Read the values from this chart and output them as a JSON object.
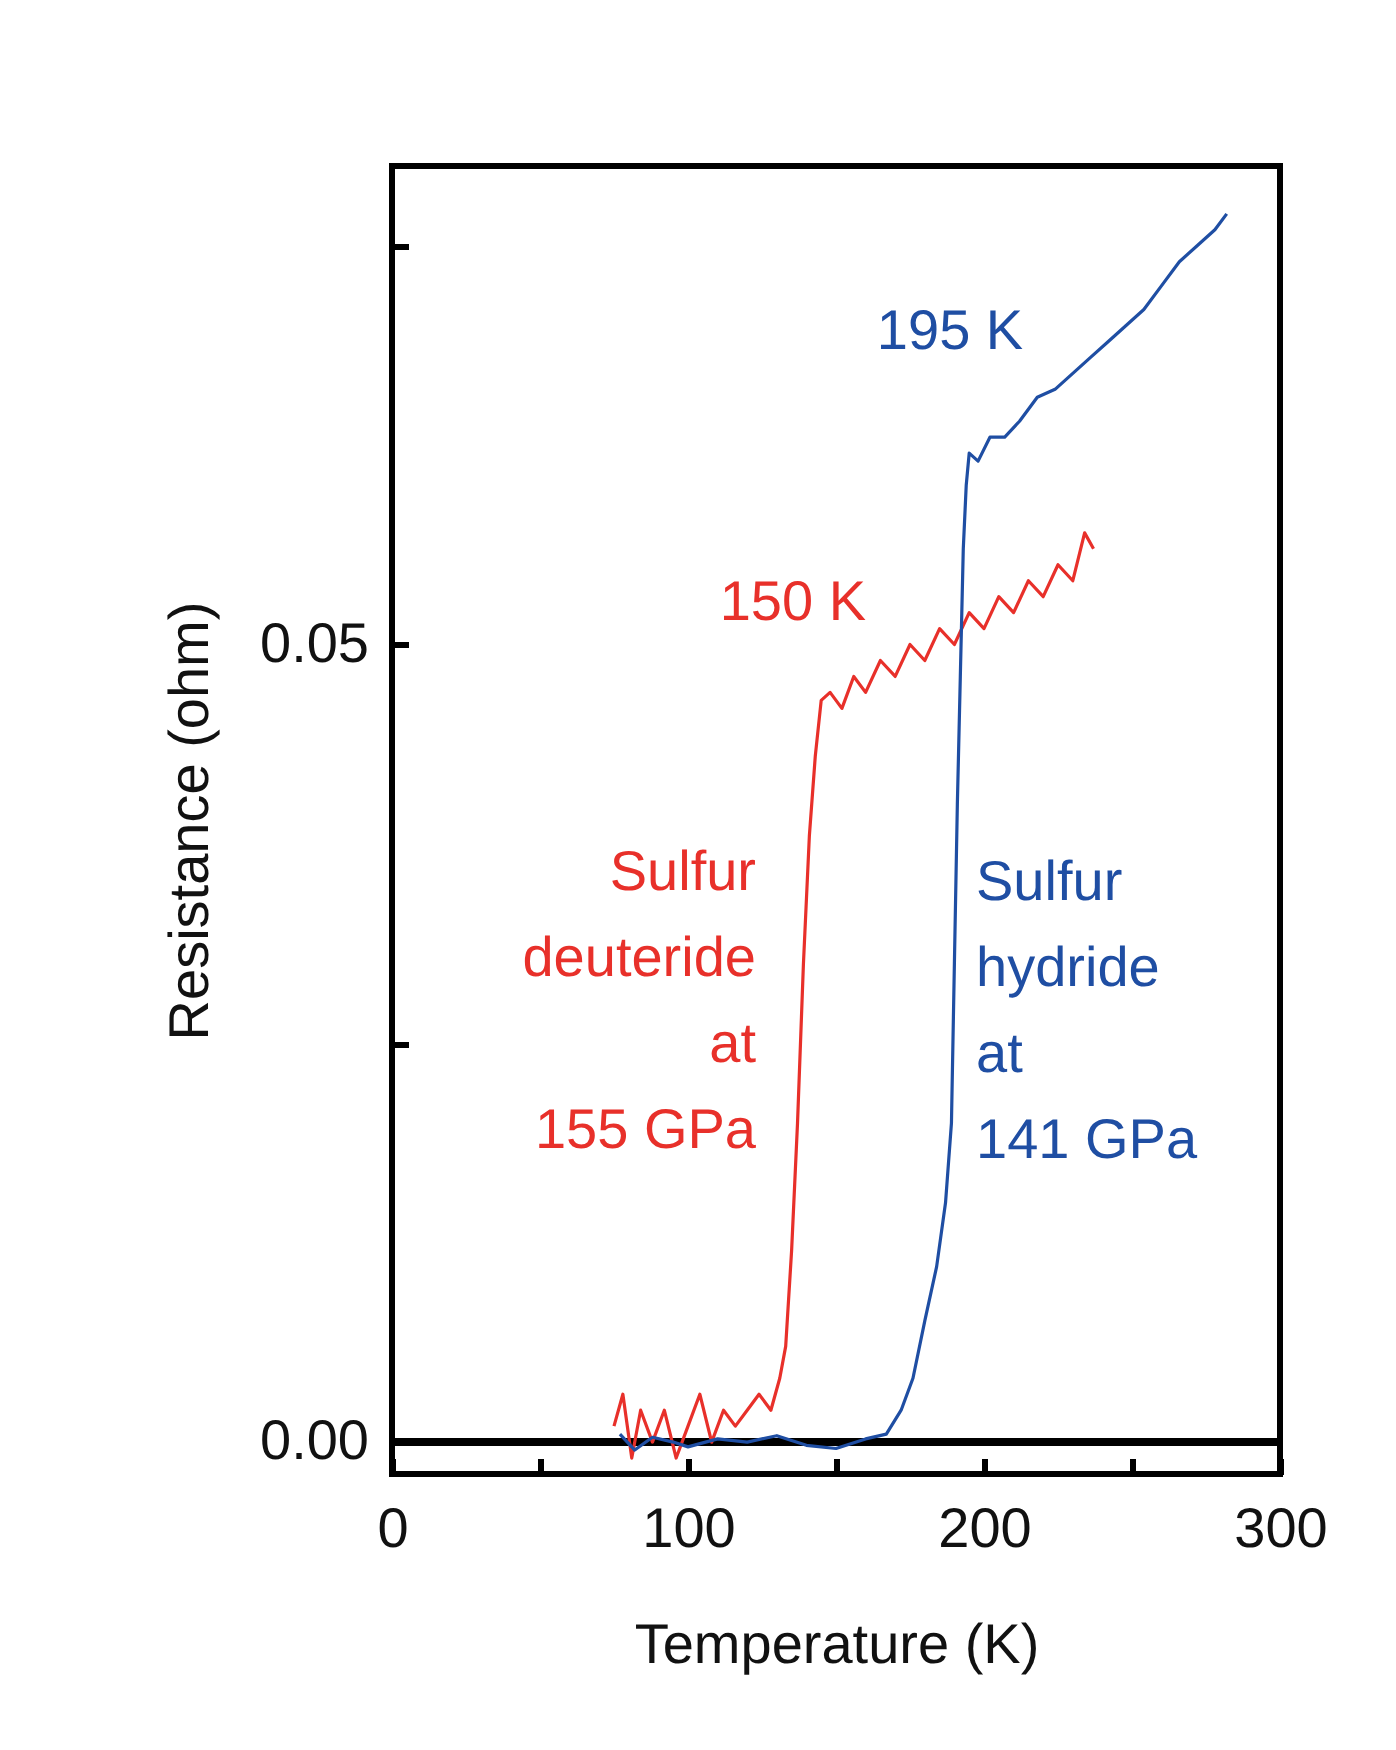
{
  "chart_data": {
    "type": "line",
    "xlabel": "Temperature (K)",
    "ylabel": "Resistance (ohm)",
    "xlim": [
      0,
      300
    ],
    "xticks": [
      0,
      {
        "value": 50,
        "label": null
      },
      100,
      {
        "value": 150,
        "label": null
      },
      200,
      {
        "value": 250,
        "label": null
      },
      300
    ],
    "ylim": [
      -0.002,
      0.08
    ],
    "yticks": [
      {
        "value": 0,
        "label": "0.00"
      },
      {
        "value": 0.025,
        "label": null
      },
      {
        "value": 0.05,
        "label": "0.05"
      },
      {
        "value": 0.075,
        "label": null
      }
    ],
    "grid": false,
    "marker": "none",
    "line_style": "solid",
    "ref_lines": [
      {
        "axis": "y",
        "value": 0,
        "color": "#000000"
      }
    ],
    "annotations": [
      {
        "text": "150 K",
        "x": 150,
        "y": 0.047
      },
      {
        "text": "195 K",
        "x": 195,
        "y": 0.062
      }
    ],
    "series": [
      {
        "name": "Sulfur\ndeuteride\nat\n155 GPa",
        "color": "#e8302a",
        "x": [
          75,
          78,
          81,
          84,
          88,
          92,
          96,
          100,
          104,
          108,
          112,
          116,
          120,
          124,
          128,
          131,
          133,
          135,
          137,
          139,
          141,
          143,
          145,
          148,
          152,
          156,
          160,
          165,
          170,
          175,
          180,
          185,
          190,
          195,
          200,
          205,
          210,
          215,
          220,
          225,
          230,
          234,
          237
        ],
        "values": [
          0.001,
          0.003,
          -0.001,
          0.002,
          0.0,
          0.002,
          -0.001,
          0.001,
          0.003,
          0.0,
          0.002,
          0.001,
          0.002,
          0.003,
          0.002,
          0.004,
          0.006,
          0.012,
          0.02,
          0.03,
          0.038,
          0.043,
          0.0465,
          0.047,
          0.046,
          0.048,
          0.047,
          0.049,
          0.048,
          0.05,
          0.049,
          0.051,
          0.05,
          0.052,
          0.051,
          0.053,
          0.052,
          0.054,
          0.053,
          0.055,
          0.054,
          0.057,
          0.056
        ]
      },
      {
        "name": "Sulfur\nhydride\nat\n141 GPa",
        "color": "#1f4ea3",
        "x": [
          77,
          82,
          88,
          95,
          100,
          110,
          120,
          130,
          140,
          150,
          160,
          167,
          172,
          176,
          180,
          184,
          187,
          189,
          190,
          191,
          192,
          193,
          194,
          195,
          198,
          202,
          207,
          212,
          218,
          224,
          230,
          236,
          242,
          248,
          254,
          260,
          266,
          272,
          278,
          282
        ],
        "values": [
          0.0005,
          -0.0005,
          0.0003,
          0.0,
          -0.0003,
          0.0002,
          0.0,
          0.0004,
          -0.0002,
          -0.0004,
          0.0002,
          0.0005,
          0.002,
          0.004,
          0.0076,
          0.011,
          0.015,
          0.02,
          0.03,
          0.04,
          0.048,
          0.056,
          0.06,
          0.062,
          0.0615,
          0.063,
          0.063,
          0.064,
          0.0655,
          0.066,
          0.067,
          0.068,
          0.069,
          0.07,
          0.071,
          0.0725,
          0.074,
          0.075,
          0.076,
          0.077
        ]
      }
    ]
  }
}
